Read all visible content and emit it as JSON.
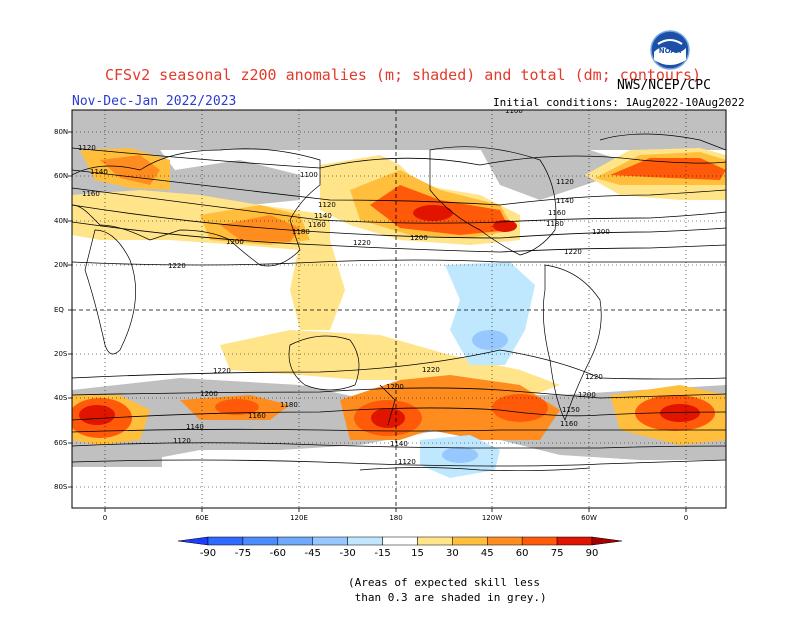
{
  "header": {
    "title": "CFSv2 seasonal z200 anomalies (m; shaded) and total (dm; contours)",
    "period": "Nov-Dec-Jan 2022/2023",
    "agency": "NWS/NCEP/CPC",
    "initial_conditions": "Initial conditions: 1Aug2022-10Aug2022",
    "logo_text": "NOAA"
  },
  "axes": {
    "lat_ticks": [
      "80N",
      "60N",
      "40N",
      "20N",
      "EQ",
      "20S",
      "40S",
      "60S",
      "80S"
    ],
    "lon_ticks": [
      "0",
      "60E",
      "120E",
      "180",
      "120W",
      "60W",
      "0"
    ]
  },
  "colorbar": {
    "ticks": [
      "-90",
      "-75",
      "-60",
      "-45",
      "-30",
      "-15",
      "15",
      "30",
      "45",
      "60",
      "75",
      "90"
    ],
    "colors": [
      "#1e3cff",
      "#2f6bff",
      "#4b8cff",
      "#6ea8ff",
      "#96c8ff",
      "#bfe8ff",
      "#ffffff",
      "#ffe48a",
      "#ffbe3c",
      "#ff8c1e",
      "#ff5a0a",
      "#e11400",
      "#a50000"
    ]
  },
  "contour_labels": [
    {
      "text": "1120",
      "lon_anchor": "0E",
      "lat": 65
    },
    {
      "text": "1140",
      "lon_anchor": "0E",
      "lat": 56
    },
    {
      "text": "1160",
      "lon_anchor": "0E",
      "lat": 48
    },
    {
      "text": "1100",
      "lon_anchor": "90E",
      "lat": 60
    },
    {
      "text": "1120",
      "lon_anchor": "110E",
      "lat": 47
    },
    {
      "text": "1140",
      "lon_anchor": "110E",
      "lat": 41
    },
    {
      "text": "1160",
      "lon_anchor": "105E",
      "lat": 38
    },
    {
      "text": "1180",
      "lon_anchor": "90E",
      "lat": 35
    },
    {
      "text": "1200",
      "lon_anchor": "60E",
      "lat": 29
    },
    {
      "text": "1220",
      "lon_anchor": "30E",
      "lat": 19
    },
    {
      "text": "1220",
      "lon_anchor": "120E",
      "lat": 30
    },
    {
      "text": "1200",
      "lon_anchor": "160E",
      "lat": 32
    },
    {
      "text": "1100",
      "lon_anchor": "180",
      "lat": 87
    },
    {
      "text": "1120",
      "lon_anchor": "300E",
      "lat": 57
    },
    {
      "text": "1140",
      "lon_anchor": "300E",
      "lat": 48
    },
    {
      "text": "1160",
      "lon_anchor": "290E",
      "lat": 42
    },
    {
      "text": "1180",
      "lon_anchor": "290E",
      "lat": 37
    },
    {
      "text": "1200",
      "lon_anchor": "320E",
      "lat": 34
    },
    {
      "text": "1220",
      "lon_anchor": "290E",
      "lat": 26
    },
    {
      "text": "1220",
      "lon_anchor": "60E",
      "lat": -27
    },
    {
      "text": "1200",
      "lon_anchor": "60E",
      "lat": -37
    },
    {
      "text": "1160",
      "lon_anchor": "80E",
      "lat": -47
    },
    {
      "text": "1180",
      "lon_anchor": "100E",
      "lat": -42
    },
    {
      "text": "1140",
      "lon_anchor": "60E",
      "lat": -52
    },
    {
      "text": "1120",
      "lon_anchor": "50E",
      "lat": -59
    },
    {
      "text": "1220",
      "lon_anchor": "150W",
      "lat": -26
    },
    {
      "text": "1200",
      "lon_anchor": "180",
      "lat": -34
    },
    {
      "text": "1140",
      "lon_anchor": "180",
      "lat": -59
    },
    {
      "text": "1120",
      "lon_anchor": "180",
      "lat": -68
    },
    {
      "text": "1220",
      "lon_anchor": "60W",
      "lat": -30
    },
    {
      "text": "1200",
      "lon_anchor": "60W",
      "lat": -38
    },
    {
      "text": "1180",
      "lon_anchor": "65W",
      "lat": -44
    },
    {
      "text": "1160",
      "lon_anchor": "70W",
      "lat": -50
    }
  ],
  "footnote": "(Areas of expected skill less\n than 0.3 are shaded in grey.)"
}
